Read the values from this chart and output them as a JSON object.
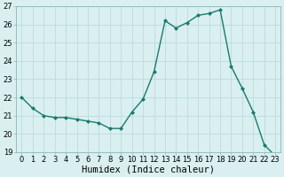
{
  "x": [
    0,
    1,
    2,
    3,
    4,
    5,
    6,
    7,
    8,
    9,
    10,
    11,
    12,
    13,
    14,
    15,
    16,
    17,
    18,
    19,
    20,
    21,
    22,
    23
  ],
  "y": [
    22.0,
    21.4,
    21.0,
    20.9,
    20.9,
    20.8,
    20.7,
    20.6,
    20.3,
    20.3,
    21.2,
    21.9,
    23.4,
    26.2,
    25.8,
    26.1,
    26.5,
    26.6,
    26.8,
    23.7,
    22.5,
    21.2,
    19.4,
    18.8
  ],
  "line_color": "#1a7a6e",
  "marker": "D",
  "marker_size": 2.0,
  "bg_color": "#d9eff0",
  "grid_color": "#b8d8d8",
  "xlabel": "Humidex (Indice chaleur)",
  "ylim": [
    19,
    27
  ],
  "xlim_min": -0.5,
  "xlim_max": 23.5,
  "yticks": [
    19,
    20,
    21,
    22,
    23,
    24,
    25,
    26,
    27
  ],
  "xticks": [
    0,
    1,
    2,
    3,
    4,
    5,
    6,
    7,
    8,
    9,
    10,
    11,
    12,
    13,
    14,
    15,
    16,
    17,
    18,
    19,
    20,
    21,
    22,
    23
  ],
  "tick_fontsize": 6,
  "xlabel_fontsize": 7.5,
  "line_width": 1.0
}
